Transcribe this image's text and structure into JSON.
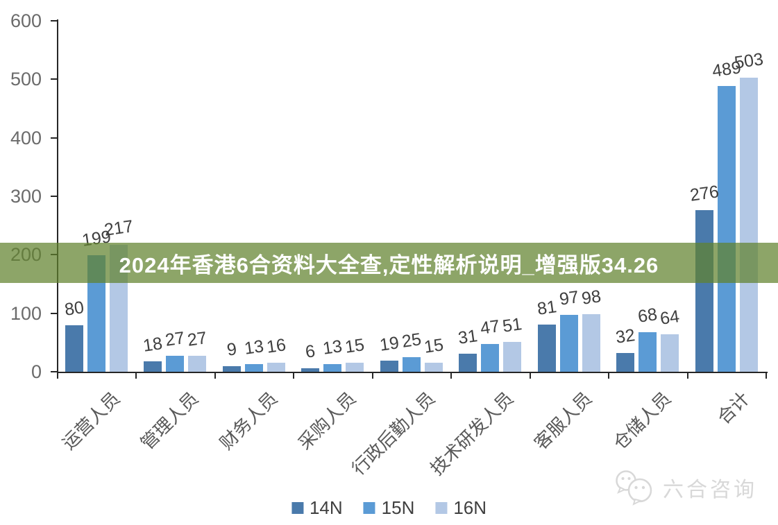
{
  "banner": {
    "text": "2024年香港6合资料大全查,定性解析说明_增强版34.26",
    "overlay_color": "#61822E",
    "overlay_opacity": 0.72,
    "text_color": "#FFFFFF"
  },
  "watermark": {
    "label": "六合咨询",
    "icon": "wechat-bubbles-icon",
    "color": "#D8D8D8"
  },
  "legend": {
    "items": [
      {
        "label": "14N",
        "color": "#4A7AAB"
      },
      {
        "label": "15N",
        "color": "#5B9BD5"
      },
      {
        "label": "16N",
        "color": "#B3C8E5"
      }
    ]
  },
  "chart_data": {
    "type": "bar",
    "title": "",
    "xlabel": "",
    "ylabel": "",
    "categories": [
      "运营人员",
      "管理人员",
      "财务人员",
      "采购人员",
      "行政后勤人员",
      "技术研发人员",
      "客服人员",
      "仓储人员",
      "合计"
    ],
    "series": [
      {
        "name": "14N",
        "color": "#4A7AAB",
        "values": [
          80,
          18,
          9,
          6,
          19,
          31,
          81,
          32,
          276
        ]
      },
      {
        "name": "15N",
        "color": "#5B9BD5",
        "values": [
          199,
          27,
          13,
          13,
          25,
          47,
          97,
          68,
          489
        ]
      },
      {
        "name": "16N",
        "color": "#B3C8E5",
        "values": [
          217,
          27,
          16,
          15,
          15,
          51,
          98,
          64,
          503
        ]
      }
    ],
    "ylim": [
      0,
      600
    ],
    "yticks": [
      0,
      100,
      200,
      300,
      400,
      500,
      600
    ],
    "grid": false,
    "data_labels": true,
    "legend_position": "bottom",
    "category_label_rotation": -45,
    "axis_color": "#262626",
    "ytick_label_color": "#6B6B6B",
    "value_label_color": "#3F3F3F",
    "category_label_color": "#595959"
  }
}
